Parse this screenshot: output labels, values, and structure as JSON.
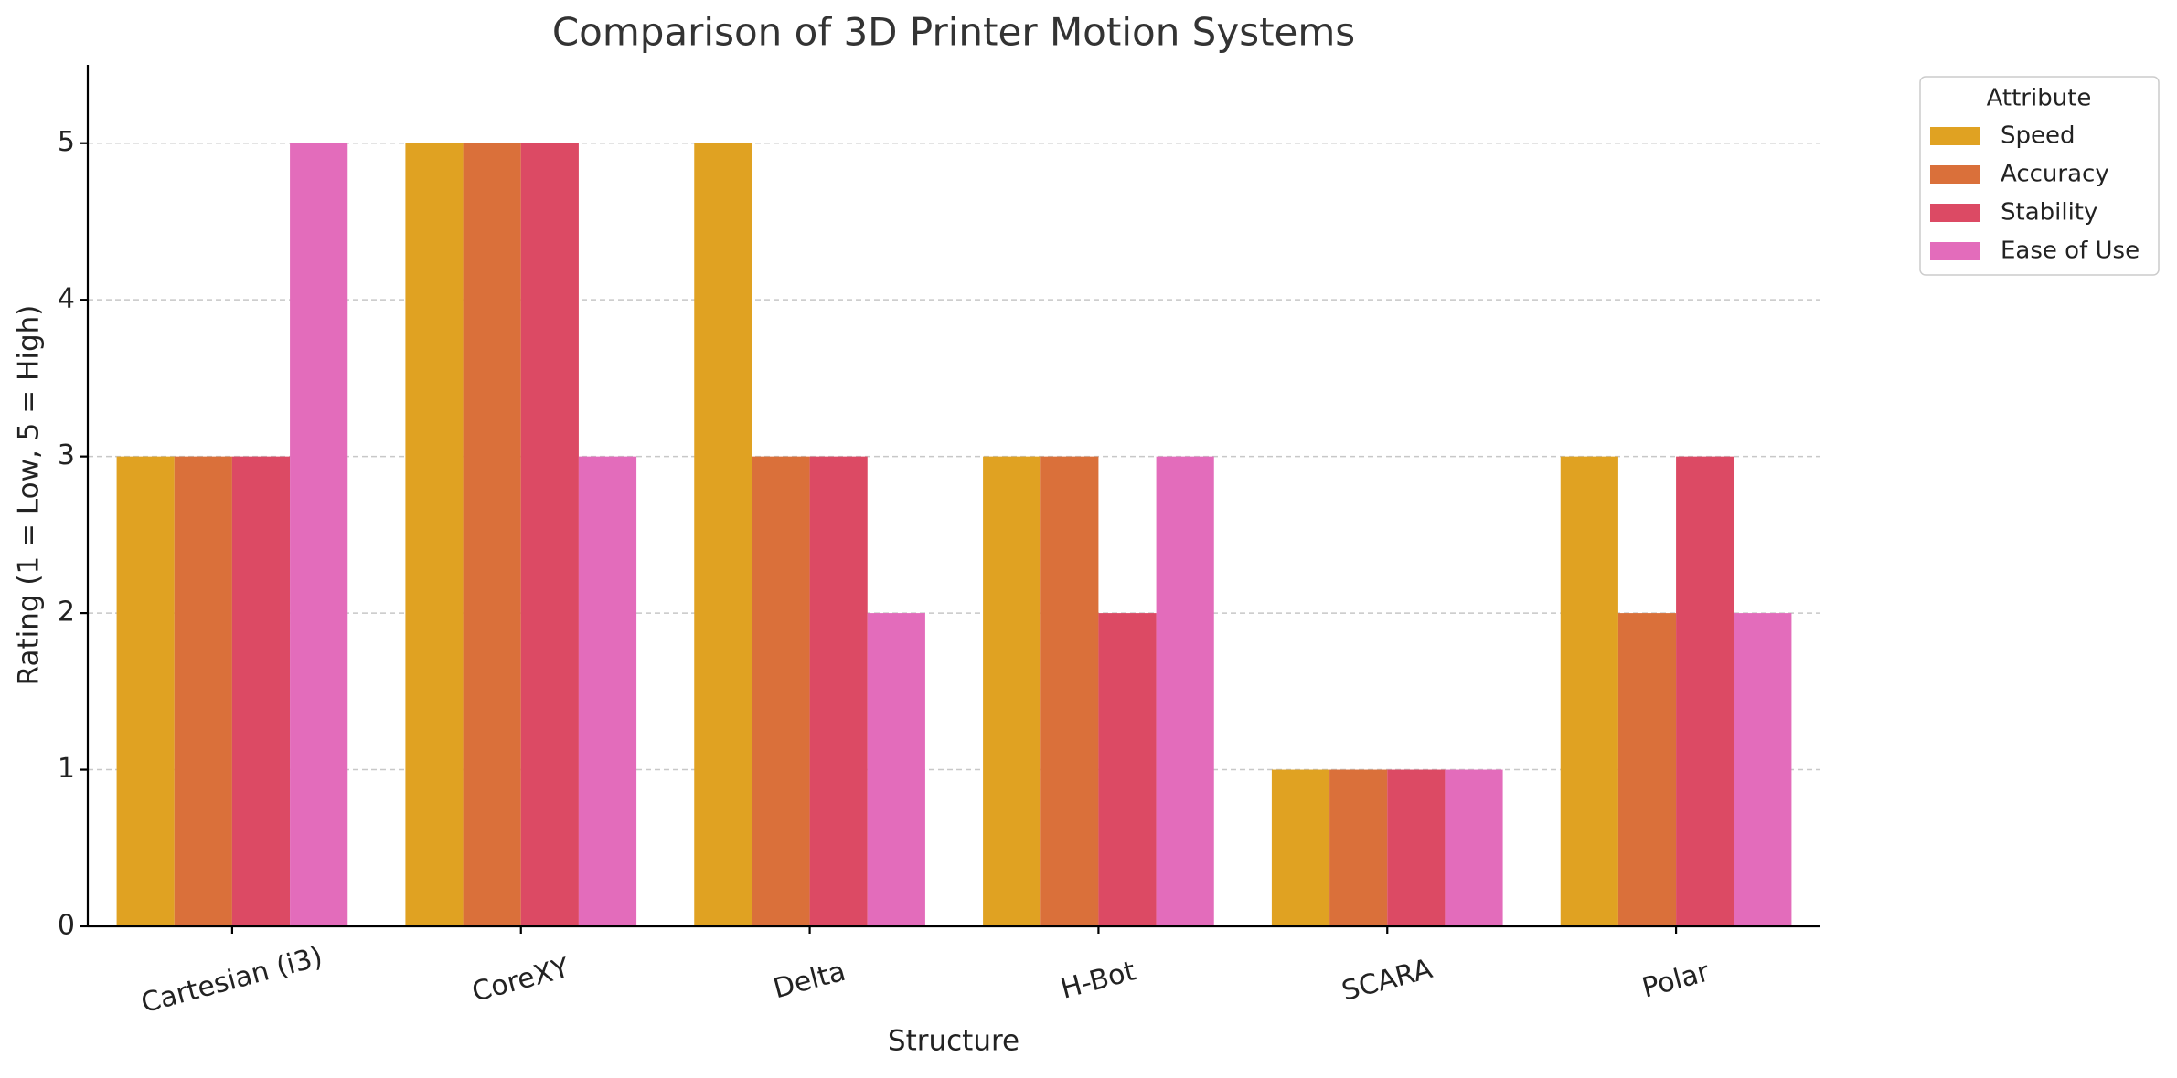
{
  "chart_data": {
    "type": "bar",
    "title": "Comparison of 3D Printer Motion Systems",
    "x_label": "Structure",
    "y_label": "Rating (1 = Low, 5 = High)",
    "categories": [
      "Cartesian (i3)",
      "CoreXY",
      "Delta",
      "H-Bot",
      "SCARA",
      "Polar"
    ],
    "series": [
      {
        "name": "Speed",
        "color": "#e0a222",
        "values": [
          3,
          5,
          5,
          3,
          1,
          3
        ]
      },
      {
        "name": "Accuracy",
        "color": "#da703a",
        "values": [
          3,
          5,
          3,
          3,
          1,
          2
        ]
      },
      {
        "name": "Stability",
        "color": "#dc4a64",
        "values": [
          3,
          5,
          3,
          2,
          1,
          3
        ]
      },
      {
        "name": "Ease of Use",
        "color": "#e36cbb",
        "values": [
          5,
          3,
          2,
          3,
          1,
          2
        ]
      }
    ],
    "legend_title": "Attribute",
    "legend": "outside upper right",
    "ylim": [
      0,
      5.5
    ],
    "yticks": [
      0,
      1,
      2,
      3,
      4,
      5
    ],
    "grid": true
  }
}
